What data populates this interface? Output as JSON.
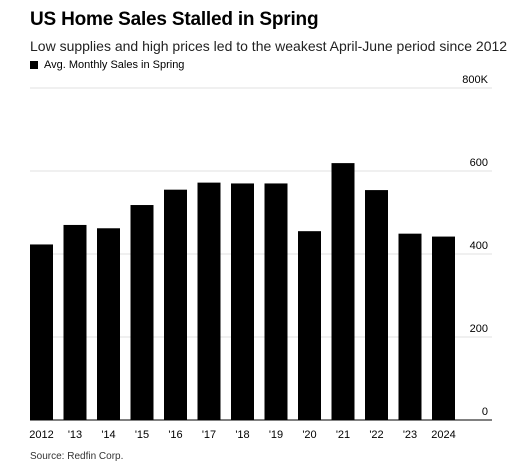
{
  "title": "US Home Sales Stalled in Spring",
  "subtitle": "Low supplies and high prices led to the weakest April-June period since 2012",
  "legend": {
    "label": "Avg. Monthly Sales in Spring",
    "color": "#000000"
  },
  "source": "Source: Redfin Corp.",
  "chart_data": {
    "type": "bar",
    "title": "US Home Sales Stalled in Spring",
    "subtitle": "Low supplies and high prices led to the weakest April-June period since 2012",
    "categories": [
      "2012",
      "'13",
      "'14",
      "'15",
      "'16",
      "'17",
      "'18",
      "'19",
      "'20",
      "'21",
      "'22",
      "'23",
      "2024"
    ],
    "series": [
      {
        "name": "Avg. Monthly Sales in Spring",
        "color": "#000000",
        "values": [
          423,
          470,
          462,
          518,
          555,
          572,
          570,
          570,
          455,
          619,
          554,
          449,
          442
        ]
      }
    ],
    "ylim": [
      0,
      800
    ],
    "yticks": [
      0,
      200,
      400,
      600,
      800
    ],
    "ytick_labels": [
      "0",
      "200",
      "400",
      "600",
      "800K"
    ],
    "y_axis_position": "right",
    "grid": true,
    "legend_position": "top-left"
  }
}
